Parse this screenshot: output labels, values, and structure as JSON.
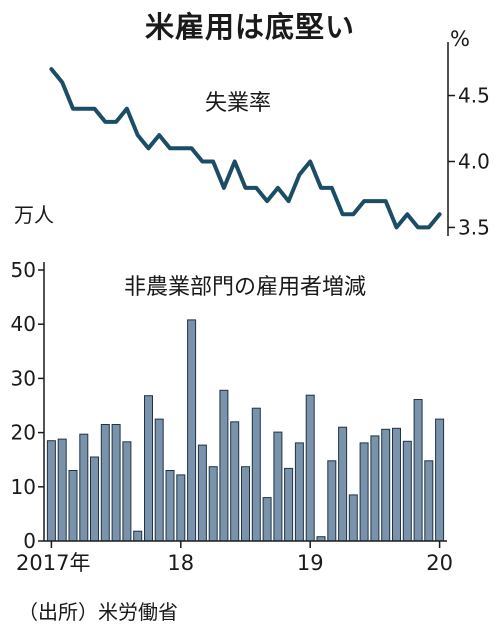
{
  "title": "米雇用は底堅い",
  "source": "（出所）米労働省",
  "chart_data": [
    {
      "type": "line",
      "series": [
        {
          "name": "失業率",
          "values": [
            4.7,
            4.6,
            4.4,
            4.4,
            4.4,
            4.3,
            4.3,
            4.4,
            4.2,
            4.1,
            4.2,
            4.1,
            4.1,
            4.1,
            4.0,
            4.0,
            3.8,
            4.0,
            3.8,
            3.8,
            3.7,
            3.8,
            3.7,
            3.9,
            4.0,
            3.8,
            3.8,
            3.6,
            3.6,
            3.7,
            3.7,
            3.7,
            3.5,
            3.6,
            3.5,
            3.5,
            3.6
          ]
        }
      ],
      "unit": "%",
      "yticks": [
        3.5,
        4.0,
        4.5
      ],
      "ylim": [
        3.42,
        4.83
      ]
    },
    {
      "type": "bar",
      "series": [
        {
          "name": "非農業部門の雇用者増減",
          "values": [
            18.5,
            18.8,
            13,
            19.7,
            15.5,
            21.5,
            21.5,
            18.3,
            1.8,
            26.8,
            22.5,
            13,
            12.2,
            40.8,
            17.7,
            13.7,
            27.8,
            22,
            13.7,
            24.5,
            8,
            20.1,
            13.4,
            18.1,
            26.9,
            0.8,
            14.8,
            21,
            8.5,
            18.1,
            19.4,
            20.6,
            20.8,
            18.4,
            26.1,
            14.8,
            22.5
          ]
        }
      ],
      "unit": "万人",
      "yticks": [
        0,
        10,
        20,
        30,
        40,
        50
      ],
      "ylim": [
        0,
        50
      ],
      "xticks": [
        {
          "label": "2017年",
          "index": 0
        },
        {
          "label": "18",
          "index": 12
        },
        {
          "label": "19",
          "index": 24
        },
        {
          "label": "20",
          "index": 36
        }
      ]
    }
  ],
  "colors": {
    "line": "#1b4d66",
    "bar_fill": "#7a93ab",
    "bar_stroke": "#1f3547",
    "axis": "#1a1a1a"
  }
}
